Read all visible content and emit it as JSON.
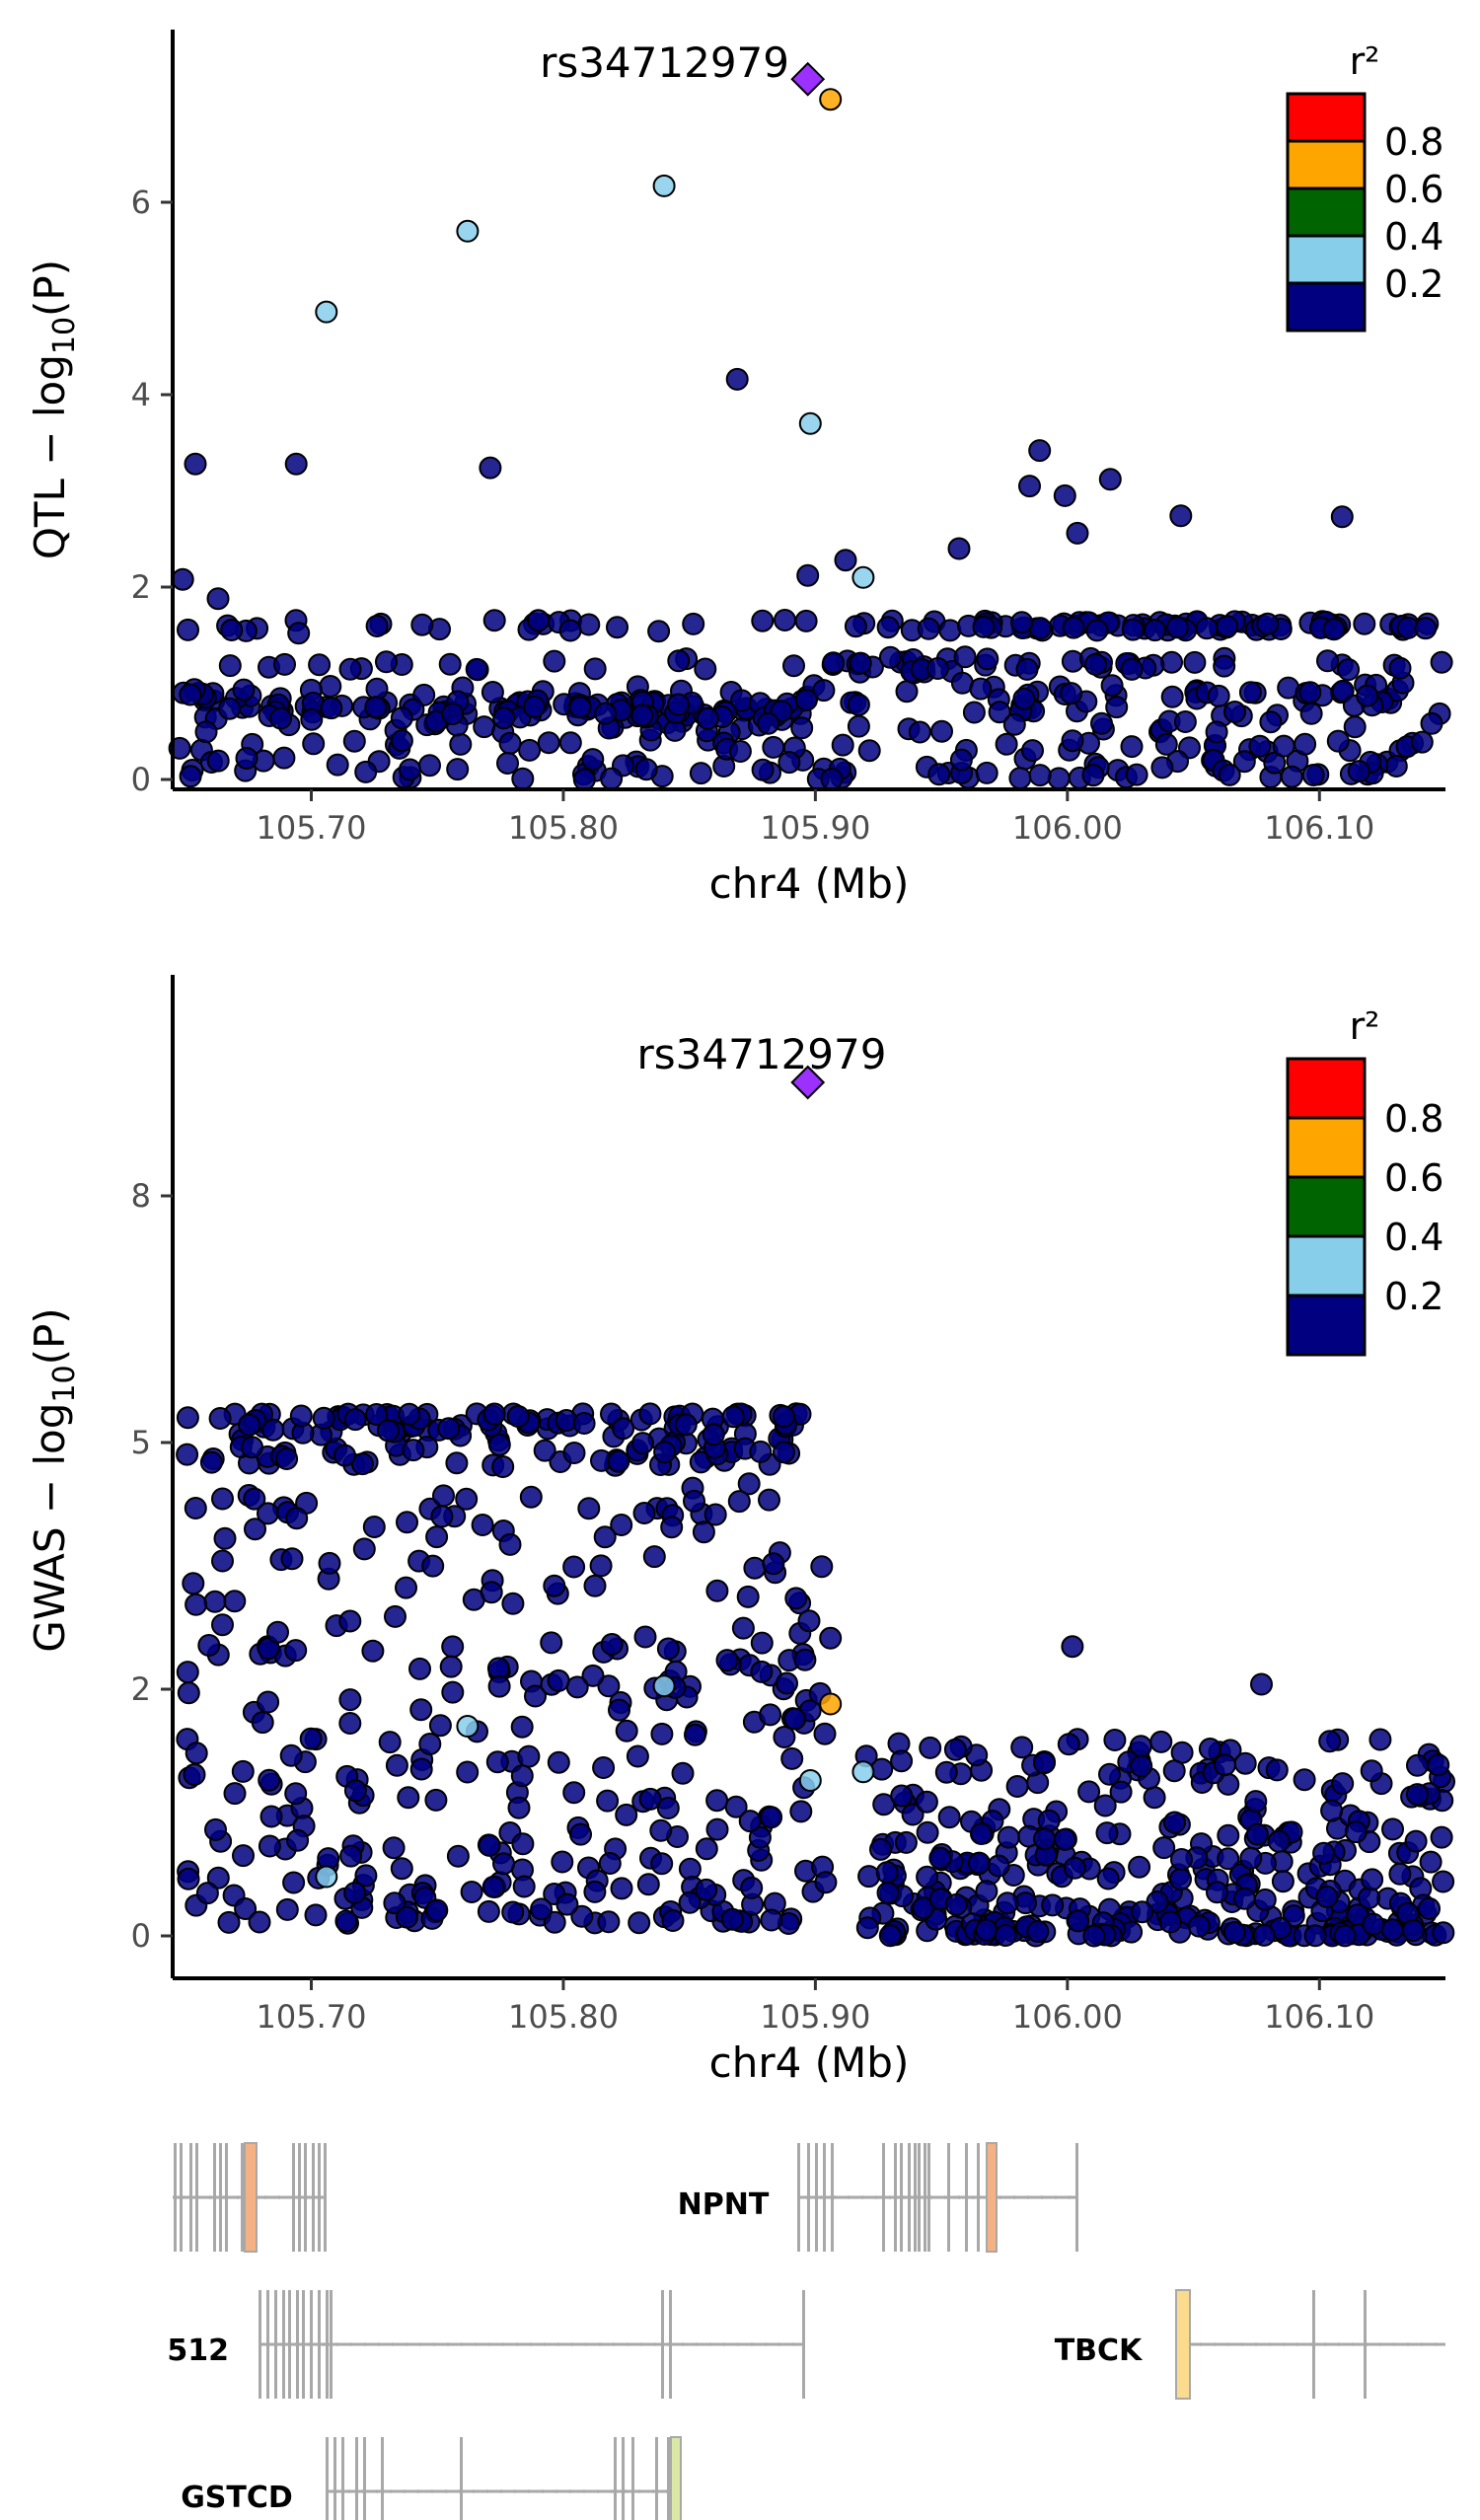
{
  "colors": {
    "ld_0_2": "#000080",
    "ld_2_4": "#87CEEB",
    "ld_4_6": "#006400",
    "ld_6_8": "#FFA500",
    "ld_8_10": "#FF0000",
    "lead": "#9B30FF",
    "gene_line": "#a8a8a8",
    "utr_orange": "#f4b183",
    "utr_yellow": "#fbdc8e",
    "utr_green": "#d9e8a4"
  },
  "legend": {
    "title": "r²",
    "labels": [
      "0.8",
      "0.6",
      "0.4",
      "0.2"
    ]
  },
  "chart_data": [
    {
      "type": "scatter",
      "panel": "QTL",
      "ylabel": "QTL − log10(P)",
      "xlabel": "chr4 (Mb)",
      "xlim": [
        105.645,
        106.15
      ],
      "ylim": [
        -0.1,
        7.6
      ],
      "xticks": [
        "105.70",
        "105.80",
        "105.90",
        "106.00",
        "106.10"
      ],
      "yticks": [
        "0",
        "2",
        "4",
        "6"
      ],
      "lead_snp": {
        "label": "rs34712979",
        "x": 105.897,
        "y": 7.28
      },
      "highlight_points": [
        {
          "x": 105.906,
          "y": 7.07,
          "r2": "0.6-0.8"
        },
        {
          "x": 105.84,
          "y": 6.17,
          "r2": "0.2-0.4"
        },
        {
          "x": 105.762,
          "y": 5.7,
          "r2": "0.2-0.4"
        },
        {
          "x": 105.706,
          "y": 4.86,
          "r2": "0.2-0.4"
        },
        {
          "x": 105.898,
          "y": 3.7,
          "r2": "0.2-0.4"
        },
        {
          "x": 105.919,
          "y": 2.1,
          "r2": "0.2-0.4"
        },
        {
          "x": 105.869,
          "y": 4.16,
          "r2": "0.0-0.2"
        },
        {
          "x": 105.654,
          "y": 3.28,
          "r2": "0.0-0.2"
        },
        {
          "x": 105.694,
          "y": 3.28,
          "r2": "0.0-0.2"
        },
        {
          "x": 105.771,
          "y": 3.24,
          "r2": "0.0-0.2"
        },
        {
          "x": 105.989,
          "y": 3.42,
          "r2": "0.0-0.2"
        },
        {
          "x": 105.649,
          "y": 2.08,
          "r2": "0.0-0.2"
        },
        {
          "x": 105.663,
          "y": 1.88,
          "r2": "0.0-0.2"
        },
        {
          "x": 105.695,
          "y": 1.52,
          "r2": "0.0-0.2"
        },
        {
          "x": 105.912,
          "y": 2.28,
          "r2": "0.0-0.2"
        },
        {
          "x": 105.897,
          "y": 2.12,
          "r2": "0.0-0.2"
        },
        {
          "x": 105.985,
          "y": 3.05,
          "r2": "0.0-0.2"
        },
        {
          "x": 106.017,
          "y": 3.12,
          "r2": "0.0-0.2"
        },
        {
          "x": 106.109,
          "y": 2.73,
          "r2": "0.0-0.2"
        },
        {
          "x": 106.045,
          "y": 2.74,
          "r2": "0.0-0.2"
        },
        {
          "x": 105.999,
          "y": 2.95,
          "r2": "0.0-0.2"
        },
        {
          "x": 106.004,
          "y": 2.56,
          "r2": "0.0-0.2"
        },
        {
          "x": 105.957,
          "y": 2.4,
          "r2": "0.0-0.2"
        }
      ],
      "background_bands": {
        "r2": "0.0-0.2",
        "x_range": [
          105.645,
          106.15
        ],
        "y_levels": [
          0.05,
          0.18,
          0.35,
          0.55,
          0.72,
          0.85,
          0.95,
          1.2,
          1.6
        ]
      }
    },
    {
      "type": "scatter",
      "panel": "GWAS",
      "ylabel": "GWAS − log10(P)",
      "xlabel": "chr4 (Mb)",
      "xlim": [
        105.645,
        106.15
      ],
      "ylim": [
        -0.3,
        9.6
      ],
      "xticks": [
        "105.70",
        "105.80",
        "105.90",
        "106.00",
        "106.10"
      ],
      "yticks": [
        "0",
        "2",
        "5",
        "8"
      ],
      "lead_snp": {
        "label": "rs34712979",
        "x": 105.897,
        "y": 9.38
      },
      "highlight_points": [
        {
          "x": 105.906,
          "y": 1.88,
          "r2": "0.6-0.8"
        },
        {
          "x": 105.84,
          "y": 2.04,
          "r2": "0.2-0.4"
        },
        {
          "x": 105.762,
          "y": 1.7,
          "r2": "0.2-0.4"
        },
        {
          "x": 105.898,
          "y": 1.26,
          "r2": "0.2-0.4"
        },
        {
          "x": 105.919,
          "y": 1.33,
          "r2": "0.2-0.4"
        },
        {
          "x": 105.706,
          "y": 0.48,
          "r2": "0.2-0.4"
        },
        {
          "x": 106.077,
          "y": 2.06,
          "r2": "0.0-0.2"
        },
        {
          "x": 106.002,
          "y": 2.52,
          "r2": "0.0-0.2"
        },
        {
          "x": 105.906,
          "y": 2.62,
          "r2": "0.0-0.2"
        }
      ],
      "plateau": {
        "x_range": [
          105.65,
          105.895
        ],
        "y_range": [
          4.7,
          5.35
        ],
        "r2": "0.0-0.2"
      },
      "mid_cloud": {
        "x_range": [
          105.65,
          105.905
        ],
        "y_range": [
          0.1,
          4.5
        ],
        "r2": "0.0-0.2"
      },
      "right_cloud": {
        "x_range": [
          105.92,
          106.15
        ],
        "y_range": [
          0.0,
          1.6
        ],
        "r2": "0.0-0.2"
      }
    }
  ],
  "genes": [
    {
      "name": "NPNT",
      "row": 1
    },
    {
      "name": "512",
      "row": 2
    },
    {
      "name": "TBCK",
      "row": 2
    },
    {
      "name": "GSTCD",
      "row": 3
    }
  ]
}
